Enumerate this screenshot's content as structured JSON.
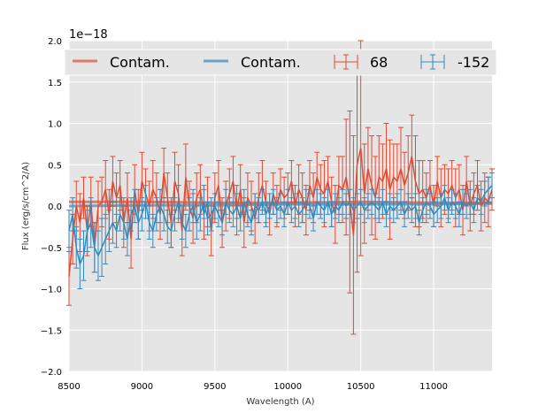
{
  "chart_data": {
    "type": "line",
    "title": "",
    "xlabel": "Wavelength (A)",
    "ylabel": "Flux (erg/s/cm^2/A)",
    "y_offset_label": "1e−18",
    "xlim": [
      8500,
      11400
    ],
    "ylim": [
      -2.0,
      2.0
    ],
    "x_ticks": [
      8500,
      9000,
      9500,
      10000,
      10500,
      11000
    ],
    "x_tick_labels": [
      "8500",
      "9000",
      "9500",
      "10000",
      "10500",
      "11000"
    ],
    "y_ticks": [
      -2.0,
      -1.5,
      -1.0,
      -0.5,
      0.0,
      0.5,
      1.0,
      1.5,
      2.0
    ],
    "y_tick_labels": [
      "−2.0",
      "−1.5",
      "−1.0",
      "−0.5",
      "0.0",
      "0.5",
      "1.0",
      "1.5",
      "2.0"
    ],
    "grid": true,
    "legend_position": "top",
    "legend": [
      {
        "label": "Contam.",
        "kind": "line",
        "color": "#E24A33"
      },
      {
        "label": "Contam.",
        "kind": "line",
        "color": "#348ABD"
      },
      {
        "label": "68",
        "kind": "errorbar",
        "color": "#E24A33"
      },
      {
        "label": "-152",
        "kind": "errorbar",
        "color": "#348ABD"
      }
    ],
    "series": [
      {
        "name": "Contam.",
        "kind": "contamination",
        "color": "#E24A33",
        "x": [
          8500,
          9000,
          9500,
          10000,
          10500,
          11000,
          11400
        ],
        "y": [
          0.05,
          0.05,
          0.04,
          0.04,
          0.05,
          0.04,
          0.04
        ]
      },
      {
        "name": "Contam.",
        "kind": "contamination",
        "color": "#348ABD",
        "x": [
          8500,
          9000,
          9500,
          10000,
          10500,
          11000,
          11400
        ],
        "y": [
          0.0,
          0.01,
          0.01,
          0.02,
          0.02,
          0.02,
          0.03
        ]
      },
      {
        "name": "68",
        "kind": "errorbar",
        "color": "#E24A33",
        "x": [
          8500,
          8525,
          8550,
          8575,
          8600,
          8625,
          8650,
          8675,
          8700,
          8725,
          8750,
          8775,
          8800,
          8825,
          8850,
          8875,
          8900,
          8925,
          8950,
          8975,
          9000,
          9025,
          9050,
          9075,
          9100,
          9125,
          9150,
          9175,
          9200,
          9225,
          9250,
          9275,
          9300,
          9325,
          9350,
          9375,
          9400,
          9425,
          9450,
          9475,
          9500,
          9525,
          9550,
          9575,
          9600,
          9625,
          9650,
          9675,
          9700,
          9725,
          9750,
          9775,
          9800,
          9825,
          9850,
          9875,
          9900,
          9925,
          9950,
          9975,
          10000,
          10025,
          10050,
          10075,
          10100,
          10125,
          10150,
          10175,
          10200,
          10225,
          10250,
          10275,
          10300,
          10325,
          10350,
          10375,
          10400,
          10425,
          10450,
          10475,
          10500,
          10525,
          10550,
          10575,
          10600,
          10625,
          10650,
          10675,
          10700,
          10725,
          10750,
          10775,
          10800,
          10825,
          10850,
          10875,
          10900,
          10925,
          10950,
          10975,
          11000,
          11025,
          11050,
          11075,
          11100,
          11125,
          11150,
          11175,
          11200,
          11225,
          11250,
          11275,
          11300,
          11325,
          11350,
          11375,
          11400
        ],
        "y": [
          -0.85,
          -0.4,
          0.0,
          -0.2,
          0.1,
          -0.3,
          0.05,
          -0.5,
          0.0,
          0.05,
          0.2,
          -0.1,
          0.3,
          0.1,
          0.25,
          -0.2,
          0.1,
          -0.4,
          0.2,
          -0.1,
          0.3,
          0.15,
          0.0,
          0.2,
          0.1,
          -0.1,
          0.4,
          0.1,
          -0.2,
          0.3,
          0.15,
          -0.3,
          0.35,
          0.0,
          -0.15,
          0.1,
          0.2,
          -0.1,
          0.05,
          -0.3,
          0.1,
          0.25,
          -0.2,
          0.0,
          0.15,
          0.3,
          -0.05,
          0.2,
          -0.2,
          0.1,
          0.0,
          -0.15,
          0.1,
          0.25,
          0.05,
          -0.1,
          0.15,
          0.0,
          0.2,
          0.1,
          0.15,
          0.3,
          0.0,
          0.2,
          0.1,
          -0.05,
          0.25,
          0.1,
          0.35,
          0.2,
          0.15,
          0.3,
          0.05,
          -0.1,
          0.25,
          0.2,
          0.35,
          0.05,
          -0.35,
          0.5,
          0.7,
          0.15,
          0.45,
          0.25,
          0.1,
          0.35,
          0.3,
          0.45,
          0.2,
          0.35,
          0.3,
          0.45,
          0.25,
          0.4,
          0.6,
          0.3,
          0.15,
          0.2,
          0.1,
          0.25,
          0.0,
          0.3,
          0.1,
          0.2,
          0.15,
          0.25,
          0.1,
          0.2,
          -0.05,
          0.3,
          0.0,
          0.15,
          0.25,
          0.0,
          0.1,
          0.05,
          0.2
        ],
        "err": [
          0.35,
          0.3,
          0.3,
          0.35,
          0.25,
          0.3,
          0.3,
          0.3,
          0.3,
          0.3,
          0.35,
          0.3,
          0.3,
          0.3,
          0.3,
          0.3,
          0.3,
          0.35,
          0.3,
          0.3,
          0.35,
          0.3,
          0.3,
          0.35,
          0.3,
          0.3,
          0.3,
          0.3,
          0.3,
          0.35,
          0.35,
          0.3,
          0.4,
          0.3,
          0.3,
          0.3,
          0.3,
          0.3,
          0.3,
          0.3,
          0.3,
          0.3,
          0.3,
          0.3,
          0.3,
          0.3,
          0.3,
          0.3,
          0.3,
          0.3,
          0.3,
          0.3,
          0.3,
          0.3,
          0.25,
          0.25,
          0.25,
          0.25,
          0.25,
          0.25,
          0.25,
          0.25,
          0.25,
          0.3,
          0.3,
          0.3,
          0.3,
          0.3,
          0.3,
          0.3,
          0.4,
          0.3,
          0.3,
          0.35,
          0.35,
          0.4,
          0.7,
          1.1,
          1.2,
          1.3,
          1.3,
          0.6,
          0.5,
          0.6,
          0.5,
          0.5,
          0.45,
          0.55,
          0.6,
          0.4,
          0.45,
          0.5,
          0.4,
          0.45,
          0.5,
          0.55,
          0.4,
          0.35,
          0.3,
          0.3,
          0.25,
          0.3,
          0.35,
          0.3,
          0.3,
          0.3,
          0.35,
          0.3,
          0.3,
          0.3,
          0.3,
          0.25,
          0.3,
          0.3,
          0.3,
          0.3,
          0.25
        ]
      },
      {
        "name": "-152",
        "kind": "errorbar",
        "color": "#348ABD",
        "x": [
          8500,
          8525,
          8550,
          8575,
          8600,
          8625,
          8650,
          8675,
          8700,
          8725,
          8750,
          8775,
          8800,
          8825,
          8850,
          8875,
          8900,
          8925,
          8950,
          8975,
          9000,
          9025,
          9050,
          9075,
          9100,
          9125,
          9150,
          9175,
          9200,
          9225,
          9250,
          9275,
          9300,
          9325,
          9350,
          9375,
          9400,
          9425,
          9450,
          9475,
          9500,
          9525,
          9550,
          9575,
          9600,
          9625,
          9650,
          9675,
          9700,
          9725,
          9750,
          9775,
          9800,
          9825,
          9850,
          9875,
          9900,
          9925,
          9950,
          9975,
          10000,
          10025,
          10050,
          10075,
          10100,
          10125,
          10150,
          10175,
          10200,
          10225,
          10250,
          10275,
          10300,
          10325,
          10350,
          10375,
          10400,
          10425,
          10450,
          10475,
          10500,
          10525,
          10550,
          10575,
          10600,
          10625,
          10650,
          10675,
          10700,
          10725,
          10750,
          10775,
          10800,
          10825,
          10850,
          10875,
          10900,
          10925,
          10950,
          10975,
          11000,
          11025,
          11050,
          11075,
          11100,
          11125,
          11150,
          11175,
          11200,
          11225,
          11250,
          11275,
          11300,
          11325,
          11350,
          11375,
          11400
        ],
        "y": [
          -0.3,
          -0.1,
          -0.5,
          -0.7,
          -0.6,
          -0.3,
          -0.2,
          -0.5,
          -0.6,
          -0.5,
          -0.4,
          -0.3,
          -0.2,
          -0.3,
          -0.1,
          -0.2,
          -0.4,
          -0.1,
          0.0,
          -0.2,
          -0.1,
          0.05,
          -0.2,
          -0.3,
          -0.1,
          0.0,
          -0.1,
          -0.25,
          -0.3,
          -0.1,
          0.05,
          -0.2,
          -0.3,
          -0.1,
          0.0,
          -0.2,
          -0.1,
          0.05,
          -0.15,
          -0.1,
          0.0,
          -0.1,
          -0.2,
          0.05,
          -0.05,
          -0.1,
          0.0,
          -0.15,
          0.05,
          -0.1,
          -0.2,
          0.0,
          -0.05,
          0.05,
          -0.1,
          0.0,
          0.05,
          -0.05,
          0.0,
          -0.1,
          0.05,
          -0.05,
          0.0,
          -0.1,
          -0.05,
          0.05,
          0.0,
          -0.15,
          0.05,
          0.0,
          -0.05,
          0.05,
          -0.1,
          0.0,
          -0.05,
          0.05,
          0.0,
          0.05,
          -0.05,
          0.0,
          0.05,
          -0.05,
          0.0,
          0.05,
          0.0,
          -0.05,
          0.05,
          -0.1,
          0.0,
          -0.05,
          0.0,
          0.05,
          -0.1,
          0.0,
          -0.05,
          0.0,
          -0.2,
          -0.05,
          0.05,
          0.0,
          -0.1,
          -0.05,
          0.0,
          0.1,
          -0.05,
          0.05,
          0.0,
          -0.1,
          0.05,
          0.0,
          0.05,
          -0.05,
          0.1,
          0.05,
          0.15,
          0.2,
          0.25
        ],
        "err": [
          0.25,
          0.2,
          0.25,
          0.3,
          0.3,
          0.25,
          0.3,
          0.3,
          0.3,
          0.35,
          0.3,
          0.25,
          0.25,
          0.2,
          0.2,
          0.2,
          0.2,
          0.2,
          0.2,
          0.2,
          0.2,
          0.2,
          0.2,
          0.2,
          0.2,
          0.2,
          0.2,
          0.2,
          0.2,
          0.2,
          0.2,
          0.2,
          0.2,
          0.2,
          0.2,
          0.2,
          0.2,
          0.2,
          0.2,
          0.2,
          0.15,
          0.15,
          0.15,
          0.15,
          0.15,
          0.15,
          0.15,
          0.15,
          0.15,
          0.15,
          0.15,
          0.15,
          0.15,
          0.15,
          0.15,
          0.15,
          0.15,
          0.15,
          0.15,
          0.15,
          0.15,
          0.15,
          0.15,
          0.15,
          0.15,
          0.15,
          0.15,
          0.15,
          0.15,
          0.15,
          0.15,
          0.15,
          0.15,
          0.15,
          0.15,
          0.15,
          0.15,
          0.15,
          0.15,
          0.15,
          0.15,
          0.15,
          0.15,
          0.15,
          0.15,
          0.15,
          0.15,
          0.15,
          0.15,
          0.15,
          0.15,
          0.15,
          0.15,
          0.15,
          0.15,
          0.15,
          0.15,
          0.15,
          0.15,
          0.15,
          0.15,
          0.15,
          0.15,
          0.15,
          0.15,
          0.15,
          0.15,
          0.15,
          0.15,
          0.15,
          0.15,
          0.15,
          0.15,
          0.15,
          0.15,
          0.15,
          0.15
        ]
      }
    ]
  }
}
